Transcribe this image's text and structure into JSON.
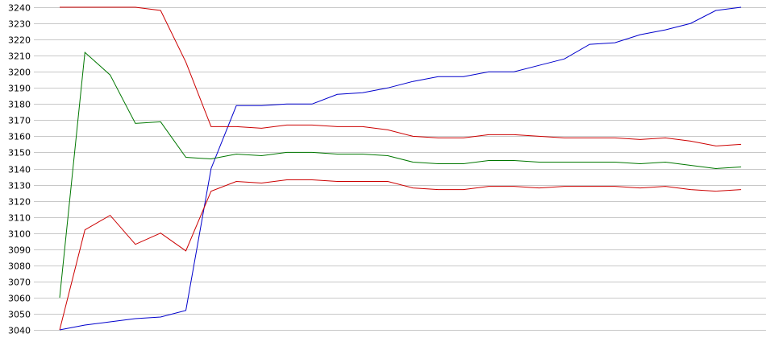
{
  "chart_data": {
    "type": "line",
    "title": "",
    "xlabel": "",
    "ylabel": "",
    "ylim": [
      3040,
      3240
    ],
    "ytick_step": 10,
    "grid": true,
    "x": [
      1,
      2,
      3,
      4,
      5,
      6,
      7,
      8,
      9,
      10,
      11,
      12,
      13,
      14,
      15,
      16,
      17,
      18,
      19,
      20,
      21,
      22,
      23,
      24,
      25,
      26,
      27,
      28
    ],
    "series": [
      {
        "color": "#0000cc",
        "values": [
          3040,
          3043,
          3045,
          3047,
          3048,
          3052,
          3140,
          3179,
          3179,
          3180,
          3180,
          3186,
          3187,
          3190,
          3194,
          3197,
          3197,
          3200,
          3200,
          3204,
          3208,
          3217,
          3218,
          3223,
          3226,
          3230,
          3238,
          3240
        ]
      },
      {
        "color": "#cc0000",
        "values": [
          3240,
          3240,
          3240,
          3240,
          3238,
          3206,
          3166,
          3166,
          3165,
          3167,
          3167,
          3166,
          3166,
          3164,
          3160,
          3159,
          3159,
          3161,
          3161,
          3160,
          3159,
          3159,
          3159,
          3158,
          3159,
          3157,
          3154,
          3155
        ]
      },
      {
        "color": "#007700",
        "values": [
          3060,
          3212,
          3198,
          3168,
          3169,
          3147,
          3146,
          3149,
          3148,
          3150,
          3150,
          3149,
          3149,
          3148,
          3144,
          3143,
          3143,
          3145,
          3145,
          3144,
          3144,
          3144,
          3144,
          3143,
          3144,
          3142,
          3140,
          3141
        ]
      },
      {
        "color": "#cc0000",
        "values": [
          3040,
          3102,
          3111,
          3093,
          3100,
          3089,
          3126,
          3132,
          3131,
          3133,
          3133,
          3132,
          3132,
          3132,
          3128,
          3127,
          3127,
          3129,
          3129,
          3128,
          3129,
          3129,
          3129,
          3128,
          3129,
          3127,
          3126,
          3127
        ]
      }
    ]
  }
}
